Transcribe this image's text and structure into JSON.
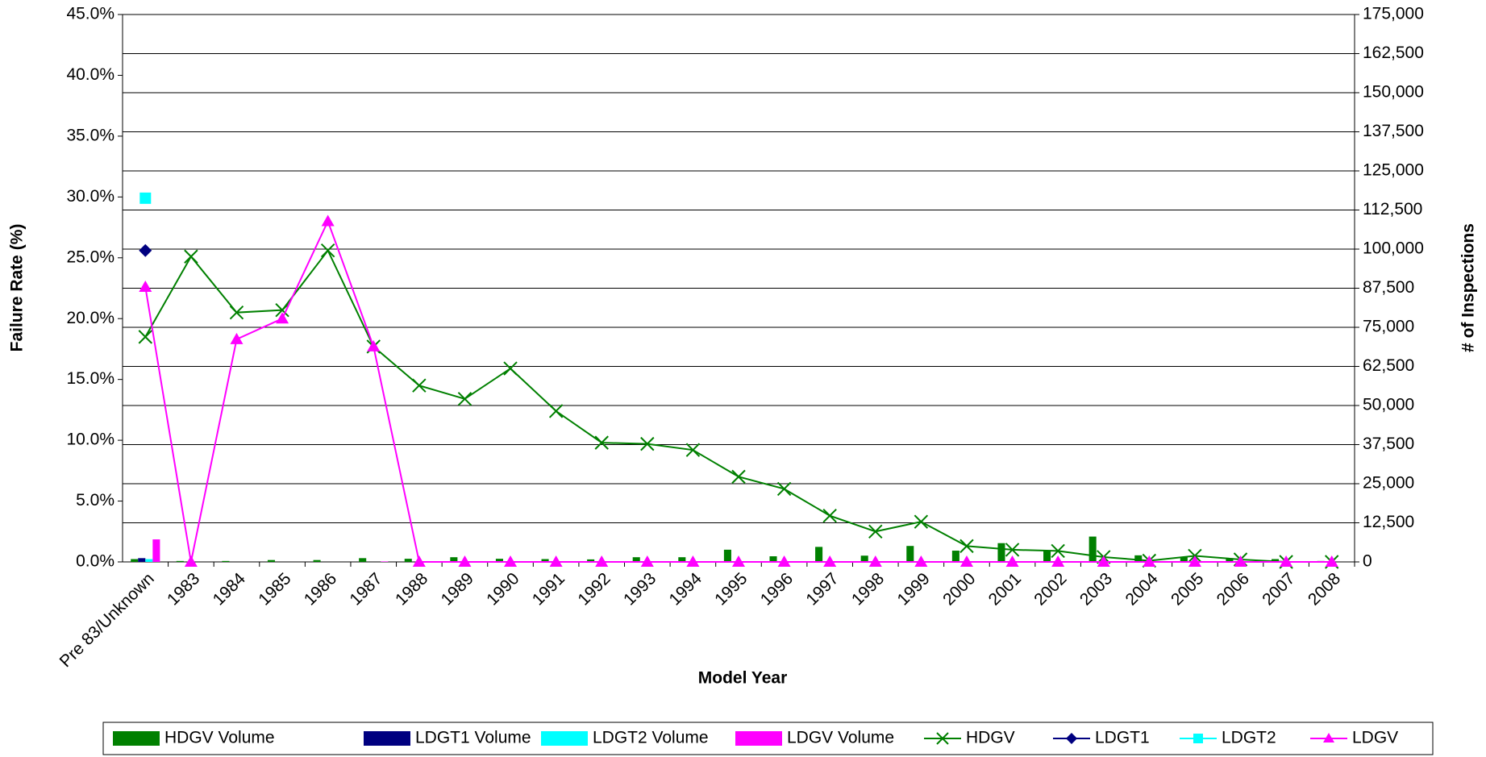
{
  "chart_data": {
    "type": "combo",
    "xlabel": "Model Year",
    "ylabel": "Failure Rate (%)",
    "y2label": "# of Inspections",
    "categories": [
      "Pre 83/Unknown",
      "1983",
      "1984",
      "1985",
      "1986",
      "1987",
      "1988",
      "1989",
      "1990",
      "1991",
      "1992",
      "1993",
      "1994",
      "1995",
      "1996",
      "1997",
      "1998",
      "1999",
      "2000",
      "2001",
      "2002",
      "2003",
      "2004",
      "2005",
      "2006",
      "2007",
      "2008"
    ],
    "ylim": [
      0,
      45
    ],
    "yticks": [
      {
        "value": 0,
        "label": "0.0%"
      },
      {
        "value": 5,
        "label": "5.0%"
      },
      {
        "value": 10,
        "label": "10.0%"
      },
      {
        "value": 15,
        "label": "15.0%"
      },
      {
        "value": 20,
        "label": "20.0%"
      },
      {
        "value": 25,
        "label": "25.0%"
      },
      {
        "value": 30,
        "label": "30.0%"
      },
      {
        "value": 35,
        "label": "35.0%"
      },
      {
        "value": 40,
        "label": "40.0%"
      },
      {
        "value": 45,
        "label": "45.0%"
      }
    ],
    "y2lim": [
      0,
      175000
    ],
    "y2ticks": [
      0,
      {
        "value": 12500,
        "label": "12,500"
      },
      {
        "value": 25000,
        "label": "25,000"
      },
      {
        "value": 37500,
        "label": "37,500"
      },
      {
        "value": 50000,
        "label": "50,000"
      },
      {
        "value": 62500,
        "label": "62,500"
      },
      {
        "value": 75000,
        "label": "75,000"
      },
      {
        "value": 87500,
        "label": "87,500"
      },
      {
        "value": 100000,
        "label": "100,000"
      },
      {
        "value": 112500,
        "label": "112,500"
      },
      {
        "value": 125000,
        "label": "125,000"
      },
      {
        "value": 137500,
        "label": "137,500"
      },
      {
        "value": 150000,
        "label": "150,000"
      },
      {
        "value": 162500,
        "label": "162,500"
      },
      {
        "value": 175000,
        "label": "175,000"
      }
    ],
    "grid": true,
    "legend": "bottom",
    "series": [
      {
        "name": "HDGV Volume",
        "type": "bar",
        "axis": "y2",
        "color": "#008000",
        "values": [
          900,
          300,
          300,
          600,
          600,
          1200,
          1000,
          1500,
          1000,
          900,
          800,
          1500,
          1500,
          3900,
          1800,
          4800,
          2000,
          5100,
          3600,
          6000,
          3600,
          8100,
          2100,
          1500,
          1200,
          900,
          300
        ]
      },
      {
        "name": "LDGT1 Volume",
        "type": "bar",
        "axis": "y2",
        "color": "#000080",
        "values": [
          1200,
          0,
          0,
          0,
          0,
          0,
          0,
          0,
          0,
          0,
          0,
          0,
          0,
          0,
          0,
          0,
          0,
          0,
          0,
          0,
          0,
          0,
          0,
          0,
          0,
          0,
          0
        ]
      },
      {
        "name": "LDGT2 Volume",
        "type": "bar",
        "axis": "y2",
        "color": "#00ffff",
        "values": [
          900,
          0,
          0,
          0,
          0,
          0,
          0,
          0,
          0,
          0,
          0,
          0,
          0,
          0,
          0,
          0,
          0,
          0,
          0,
          0,
          0,
          0,
          0,
          0,
          0,
          0,
          0
        ]
      },
      {
        "name": "LDGV Volume",
        "type": "bar",
        "axis": "y2",
        "color": "#ff00ff",
        "values": [
          7200,
          0,
          0,
          0,
          0,
          150,
          0,
          0,
          0,
          0,
          0,
          0,
          0,
          0,
          0,
          0,
          0,
          0,
          0,
          0,
          0,
          0,
          0,
          0,
          0,
          0,
          0
        ]
      },
      {
        "name": "HDGV",
        "type": "line",
        "marker": "x",
        "color": "#008000",
        "values": [
          18.5,
          25.1,
          20.5,
          20.7,
          25.6,
          17.7,
          14.5,
          13.4,
          15.9,
          12.4,
          9.8,
          9.7,
          9.2,
          7.0,
          6.0,
          3.8,
          2.5,
          3.3,
          1.3,
          1.0,
          0.9,
          0.4,
          0.1,
          0.5,
          0.2,
          0.0,
          0.0
        ]
      },
      {
        "name": "LDGT1",
        "type": "line",
        "marker": "diamond",
        "color": "#000080",
        "values": [
          25.6,
          null,
          null,
          null,
          null,
          null,
          null,
          null,
          null,
          null,
          null,
          null,
          null,
          null,
          null,
          null,
          null,
          null,
          null,
          null,
          null,
          null,
          null,
          null,
          null,
          null,
          null
        ]
      },
      {
        "name": "LDGT2",
        "type": "line",
        "marker": "square",
        "color": "#00ffff",
        "values": [
          29.9,
          null,
          null,
          null,
          null,
          null,
          null,
          null,
          null,
          null,
          null,
          null,
          null,
          null,
          null,
          null,
          null,
          null,
          null,
          null,
          null,
          null,
          null,
          null,
          null,
          null,
          null
        ]
      },
      {
        "name": "LDGV",
        "type": "line",
        "marker": "triangle",
        "color": "#ff00ff",
        "values": [
          22.6,
          0,
          18.3,
          20.0,
          28.0,
          17.7,
          0,
          0,
          0,
          0,
          0,
          0,
          0,
          0,
          0,
          0,
          0,
          0,
          0,
          0,
          0,
          0,
          0,
          0,
          0,
          0,
          0
        ]
      }
    ]
  }
}
